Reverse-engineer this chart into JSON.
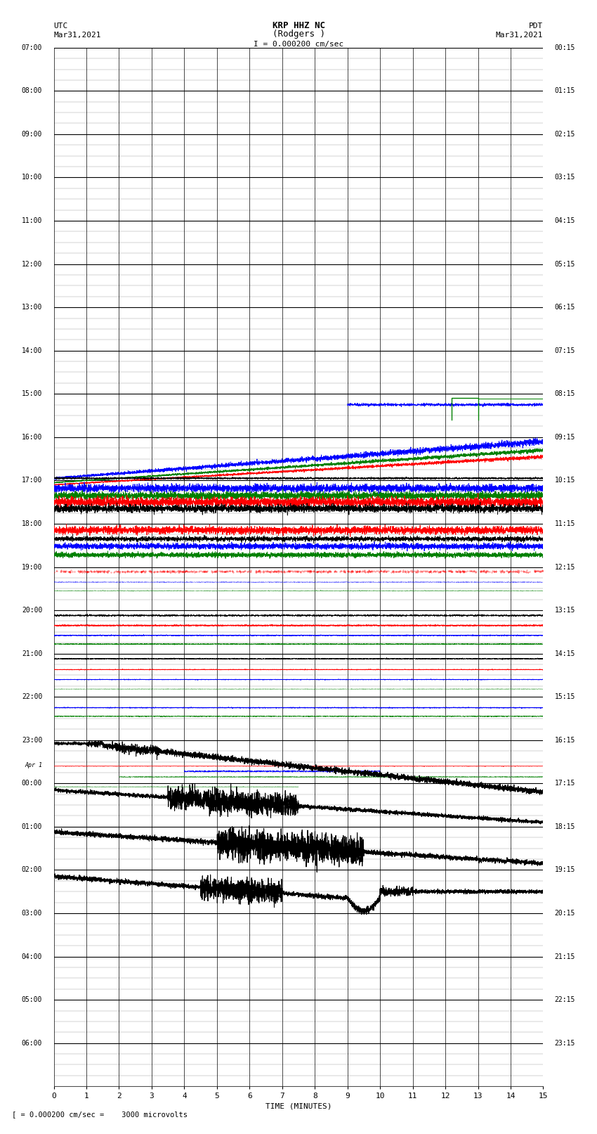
{
  "title_line1": "KRP HHZ NC",
  "title_line2": "(Rodgers )",
  "title_line3": "I = 0.000200 cm/sec",
  "left_label_top": "UTC",
  "left_label_date": "Mar31,2021",
  "right_label_top": "PDT",
  "right_label_date": "Mar31,2021",
  "xlabel": "TIME (MINUTES)",
  "bottom_label": "[ = 0.000200 cm/sec =    3000 microvolts",
  "xmin": 0,
  "xmax": 15,
  "num_rows": 24,
  "row_labels_left": [
    "07:00",
    "08:00",
    "09:00",
    "10:00",
    "11:00",
    "12:00",
    "13:00",
    "14:00",
    "15:00",
    "16:00",
    "17:00",
    "18:00",
    "19:00",
    "20:00",
    "21:00",
    "22:00",
    "23:00",
    "Apr 1\n00:00",
    "01:00",
    "02:00",
    "03:00",
    "04:00",
    "05:00",
    "06:00"
  ],
  "row_labels_left_clean": [
    "07:00",
    "08:00",
    "09:00",
    "10:00",
    "11:00",
    "12:00",
    "13:00",
    "14:00",
    "15:00",
    "16:00",
    "17:00",
    "18:00",
    "19:00",
    "20:00",
    "21:00",
    "22:00",
    "23:00",
    "00:00",
    "01:00",
    "02:00",
    "03:00",
    "04:00",
    "05:00",
    "06:00"
  ],
  "row_labels_right": [
    "00:15",
    "01:15",
    "02:15",
    "03:15",
    "04:15",
    "05:15",
    "06:15",
    "07:15",
    "08:15",
    "09:15",
    "10:15",
    "11:15",
    "12:15",
    "13:15",
    "14:15",
    "15:15",
    "16:15",
    "17:15",
    "18:15",
    "19:15",
    "20:15",
    "21:15",
    "22:15",
    "23:15"
  ],
  "background_color": "#ffffff",
  "grid_color": "#999999"
}
